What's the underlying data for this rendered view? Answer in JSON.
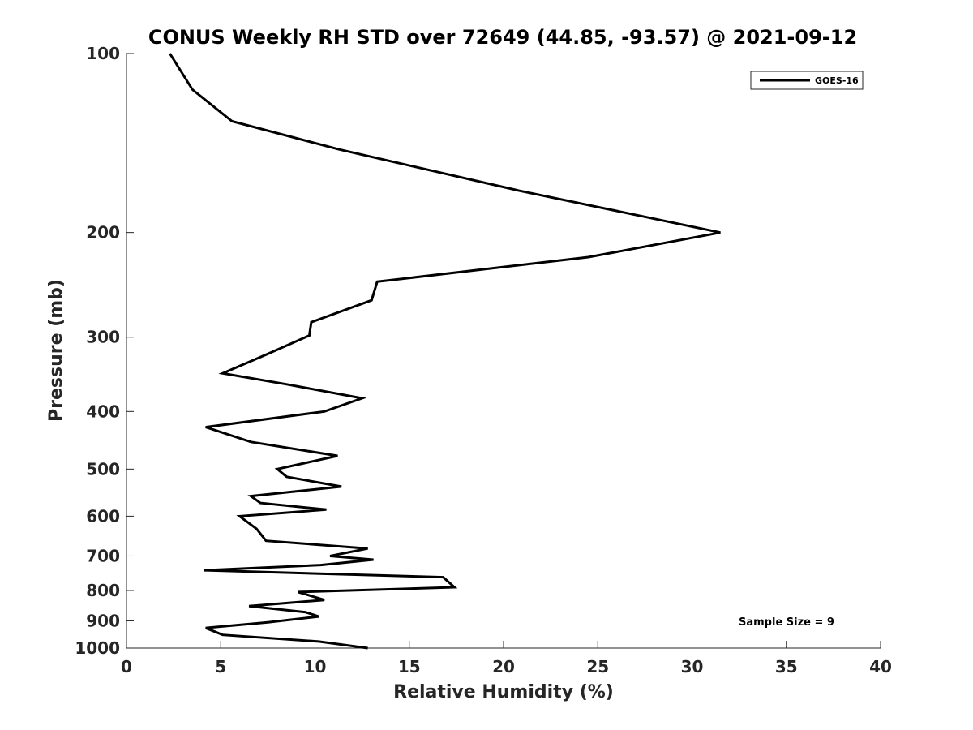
{
  "chart_data": {
    "type": "line",
    "title": "CONUS Weekly RH STD over 72649 (44.85, -93.57) @ 2021-09-12",
    "xlabel": "Relative Humidity (%)",
    "ylabel": "Pressure (mb)",
    "xlim": [
      0,
      40
    ],
    "ylim": [
      100,
      1000
    ],
    "yscale": "log",
    "y_reversed": true,
    "x_ticks": [
      0,
      5,
      10,
      15,
      20,
      25,
      30,
      35,
      40
    ],
    "y_ticks": [
      100,
      200,
      300,
      400,
      500,
      600,
      700,
      800,
      900,
      1000
    ],
    "legend_position": "top-right",
    "annotation": "Sample Size = 9",
    "series": [
      {
        "name": "GOES-16",
        "color": "#000000",
        "x": [
          2.3,
          3.5,
          5.6,
          11.3,
          20.8,
          31.5,
          24.5,
          13.3,
          13.0,
          9.8,
          9.7,
          7.5,
          5.1,
          8.5,
          12.5,
          10.5,
          4.2,
          6.6,
          11.2,
          8.0,
          8.5,
          11.4,
          6.6,
          7.1,
          10.6,
          6.0,
          6.9,
          7.4,
          12.8,
          10.8,
          13.1,
          10.3,
          4.1,
          16.8,
          17.4,
          9.1,
          10.5,
          6.5,
          9.5,
          10.2,
          7.5,
          4.2,
          5.1,
          10.2,
          12.8
        ],
        "y": [
          100,
          115,
          130,
          145,
          170,
          200,
          220,
          242,
          260,
          283,
          298,
          320,
          345,
          360,
          380,
          400,
          425,
          450,
          475,
          500,
          515,
          535,
          555,
          570,
          585,
          600,
          630,
          660,
          680,
          700,
          710,
          725,
          740,
          760,
          790,
          805,
          830,
          850,
          870,
          885,
          905,
          925,
          950,
          975,
          1000
        ]
      }
    ]
  }
}
